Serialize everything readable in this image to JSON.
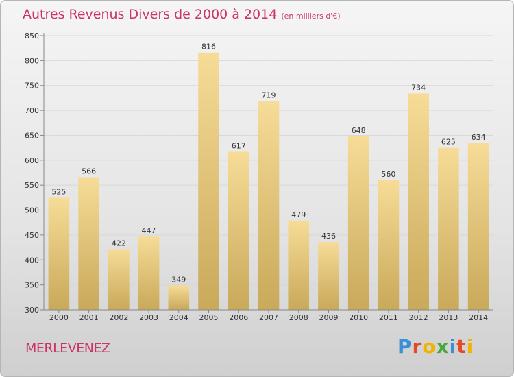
{
  "header": {
    "title": "Autres Revenus Divers de 2000 à 2014",
    "subtitle": "(en milliers d'€)"
  },
  "footer": {
    "commune": "MERLEVENEZ",
    "brand": {
      "letters": [
        "P",
        "r",
        "o",
        "x",
        "i",
        "t",
        "i"
      ],
      "colors": [
        "#3a8fd6",
        "#e24a2a",
        "#f0b400",
        "#4aa83a",
        "#3a8fd6",
        "#e24a2a",
        "#f0b400"
      ]
    }
  },
  "colors": {
    "bar_top": "#f6dc97",
    "bar_bottom": "#c9a95a",
    "title": "#cc3366"
  },
  "chart_data": {
    "type": "bar",
    "title": "Autres Revenus Divers de 2000 à 2014",
    "subtitle": "(en milliers d'€)",
    "categories": [
      "2000",
      "2001",
      "2002",
      "2003",
      "2004",
      "2005",
      "2006",
      "2007",
      "2008",
      "2009",
      "2010",
      "2011",
      "2012",
      "2013",
      "2014"
    ],
    "values": [
      525,
      566,
      422,
      447,
      349,
      816,
      617,
      719,
      479,
      436,
      648,
      560,
      734,
      625,
      634
    ],
    "ylim": [
      300,
      850
    ],
    "yticks": [
      300,
      350,
      400,
      450,
      500,
      550,
      600,
      650,
      700,
      750,
      800,
      850
    ],
    "grid": true,
    "data_labels": true,
    "xlabel": "",
    "ylabel": ""
  }
}
